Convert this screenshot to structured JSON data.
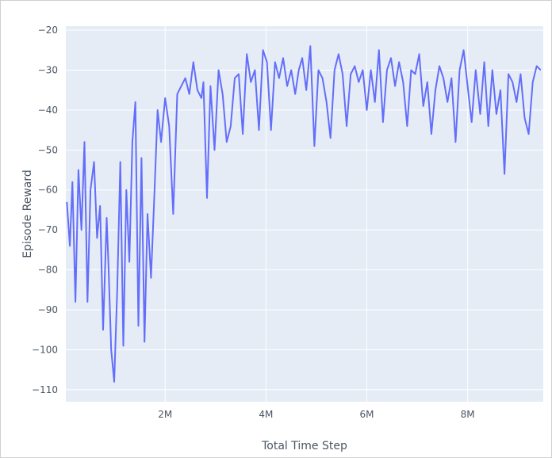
{
  "chart_data": {
    "type": "line",
    "title": "",
    "xlabel": "Total Time Step",
    "ylabel": "Episode Reward",
    "xlim": [
      30000,
      9500000
    ],
    "ylim": [
      -113,
      -19
    ],
    "x_ticks": [
      2000000,
      4000000,
      6000000,
      8000000
    ],
    "x_tick_labels": [
      "2M",
      "4M",
      "6M",
      "8M"
    ],
    "y_ticks": [
      -110,
      -100,
      -90,
      -80,
      -70,
      -60,
      -50,
      -40,
      -30,
      -20
    ],
    "y_tick_labels": [
      "−110",
      "−100",
      "−90",
      "−80",
      "−70",
      "−60",
      "−50",
      "−40",
      "−30",
      "−20"
    ],
    "grid": true,
    "legend": "none",
    "colors": {
      "plot_background": "#E5ECF6",
      "grid": "#FFFFFF",
      "line": "#636EFA"
    },
    "series": [
      {
        "x": [
          50000,
          110000,
          160000,
          220000,
          280000,
          340000,
          400000,
          460000,
          520000,
          590000,
          650000,
          710000,
          770000,
          840000,
          880000,
          930000,
          990000,
          1050000,
          1110000,
          1170000,
          1230000,
          1290000,
          1350000,
          1410000,
          1470000,
          1530000,
          1590000,
          1650000,
          1720000,
          1790000,
          1850000,
          1920000,
          2000000,
          2080000,
          2160000,
          2240000,
          2320000,
          2400000,
          2480000,
          2560000,
          2640000,
          2720000,
          2760000,
          2830000,
          2900000,
          2980000,
          3060000,
          3140000,
          3220000,
          3300000,
          3380000,
          3460000,
          3540000,
          3620000,
          3700000,
          3780000,
          3860000,
          3940000,
          4020000,
          4100000,
          4180000,
          4260000,
          4340000,
          4420000,
          4500000,
          4580000,
          4650000,
          4720000,
          4800000,
          4880000,
          4960000,
          5040000,
          5120000,
          5200000,
          5280000,
          5360000,
          5440000,
          5520000,
          5600000,
          5680000,
          5760000,
          5840000,
          5920000,
          6000000,
          6080000,
          6160000,
          6240000,
          6320000,
          6400000,
          6480000,
          6560000,
          6640000,
          6720000,
          6800000,
          6880000,
          6960000,
          7040000,
          7120000,
          7200000,
          7280000,
          7360000,
          7440000,
          7520000,
          7600000,
          7680000,
          7760000,
          7840000,
          7920000,
          8000000,
          8080000,
          8160000,
          8250000,
          8330000,
          8410000,
          8490000,
          8570000,
          8650000,
          8730000,
          8810000,
          8890000,
          8970000,
          9050000,
          9130000,
          9210000,
          9290000,
          9370000,
          9450000
        ],
        "y": [
          -63,
          -74,
          -58,
          -88,
          -55,
          -70,
          -48,
          -88,
          -60,
          -53,
          -72,
          -64,
          -95,
          -67,
          -80,
          -100,
          -108,
          -85,
          -53,
          -99,
          -60,
          -78,
          -48,
          -38,
          -94,
          -52,
          -98,
          -66,
          -82,
          -60,
          -40,
          -48,
          -37,
          -44,
          -66,
          -36,
          -34,
          -32,
          -36,
          -28,
          -35,
          -37,
          -33,
          -62,
          -34,
          -50,
          -30,
          -36,
          -48,
          -44,
          -32,
          -31,
          -46,
          -26,
          -33,
          -30,
          -45,
          -25,
          -28,
          -45,
          -28,
          -32,
          -27,
          -34,
          -30,
          -36,
          -30,
          -27,
          -35,
          -24,
          -49,
          -30,
          -32,
          -38,
          -47,
          -30,
          -26,
          -31,
          -44,
          -31,
          -29,
          -33,
          -30,
          -40,
          -30,
          -38,
          -25,
          -43,
          -30,
          -27,
          -34,
          -28,
          -33,
          -44,
          -30,
          -31,
          -26,
          -39,
          -33,
          -46,
          -35,
          -29,
          -32,
          -38,
          -32,
          -48,
          -30,
          -25,
          -34,
          -43,
          -30,
          -41,
          -28,
          -44,
          -30,
          -41,
          -35,
          -56,
          -31,
          -33,
          -38,
          -31,
          -42,
          -46,
          -33,
          -29,
          -30
        ]
      }
    ]
  }
}
